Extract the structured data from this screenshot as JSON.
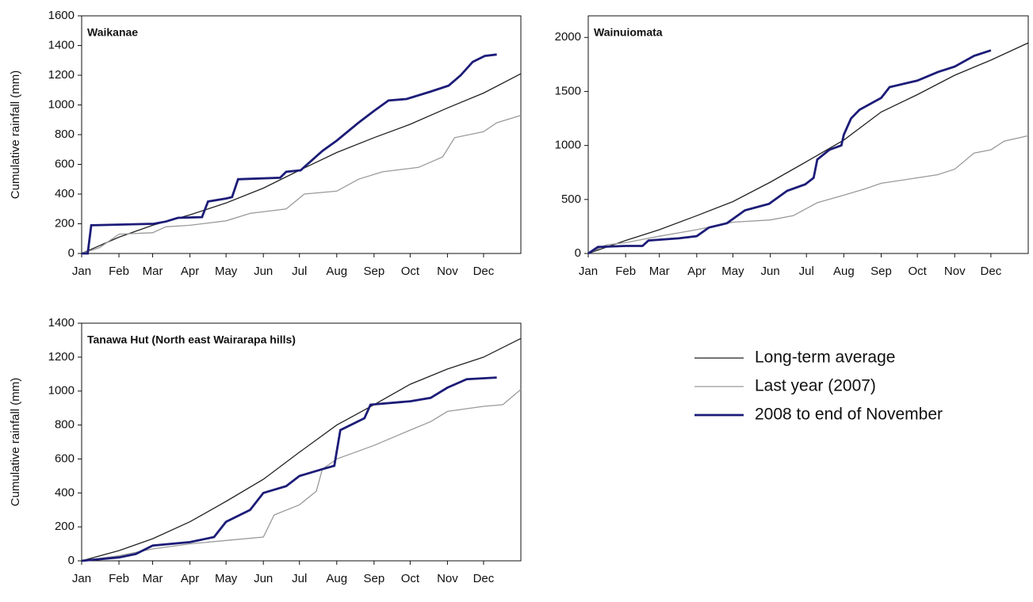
{
  "chart_data": [
    {
      "type": "line",
      "title": "Waikanae",
      "ylabel": "Cumulative rainfall (mm)",
      "xlim": [
        0,
        365
      ],
      "ylim": [
        0,
        1600
      ],
      "xticks": [
        {
          "value": 0,
          "label": "Jan"
        },
        {
          "value": 31,
          "label": "Feb"
        },
        {
          "value": 59,
          "label": "Mar"
        },
        {
          "value": 90,
          "label": "Apr"
        },
        {
          "value": 120,
          "label": "May"
        },
        {
          "value": 151,
          "label": "Jun"
        },
        {
          "value": 181,
          "label": "Jul"
        },
        {
          "value": 212,
          "label": "Aug"
        },
        {
          "value": 243,
          "label": "Sep"
        },
        {
          "value": 273,
          "label": "Oct"
        },
        {
          "value": 304,
          "label": "Nov"
        },
        {
          "value": 334,
          "label": "Dec"
        }
      ],
      "yticks": [
        0,
        200,
        400,
        600,
        800,
        1000,
        1200,
        1400,
        1600
      ],
      "series": [
        {
          "name": "Long-term average",
          "color": "#222222",
          "x": [
            0,
            31,
            59,
            90,
            120,
            151,
            181,
            212,
            243,
            273,
            304,
            334,
            365
          ],
          "values": [
            0,
            110,
            190,
            260,
            340,
            440,
            560,
            680,
            780,
            870,
            980,
            1080,
            1210
          ]
        },
        {
          "name": "Last year (2007)",
          "color": "#9a9a9a",
          "x": [
            0,
            15,
            31,
            59,
            70,
            90,
            120,
            140,
            170,
            185,
            212,
            230,
            250,
            280,
            300,
            310,
            334,
            345,
            365
          ],
          "values": [
            0,
            40,
            130,
            140,
            180,
            190,
            220,
            270,
            300,
            400,
            420,
            500,
            550,
            580,
            650,
            780,
            820,
            880,
            930
          ]
        },
        {
          "name": "2008 to end of November",
          "color": "#1c1c78",
          "x": [
            0,
            5,
            8,
            60,
            70,
            80,
            100,
            105,
            120,
            125,
            130,
            165,
            170,
            182,
            200,
            212,
            230,
            243,
            255,
            270,
            290,
            305,
            315,
            325,
            335,
            345
          ],
          "values": [
            0,
            0,
            190,
            200,
            215,
            240,
            245,
            350,
            370,
            380,
            500,
            510,
            550,
            560,
            690,
            760,
            880,
            960,
            1030,
            1040,
            1090,
            1130,
            1200,
            1290,
            1330,
            1340
          ]
        }
      ]
    },
    {
      "type": "line",
      "title": "Wainuiomata",
      "xlim": [
        0,
        365
      ],
      "ylim": [
        0,
        2200
      ],
      "xticks": [
        {
          "value": 0,
          "label": "Jan"
        },
        {
          "value": 31,
          "label": "Feb"
        },
        {
          "value": 59,
          "label": "Mar"
        },
        {
          "value": 90,
          "label": "Apr"
        },
        {
          "value": 120,
          "label": "May"
        },
        {
          "value": 151,
          "label": "Jun"
        },
        {
          "value": 181,
          "label": "Jul"
        },
        {
          "value": 212,
          "label": "Aug"
        },
        {
          "value": 243,
          "label": "Sep"
        },
        {
          "value": 273,
          "label": "Oct"
        },
        {
          "value": 304,
          "label": "Nov"
        },
        {
          "value": 334,
          "label": "Dec"
        }
      ],
      "yticks": [
        0,
        500,
        1000,
        1500,
        2000
      ],
      "series": [
        {
          "name": "Long-term average",
          "color": "#222222",
          "x": [
            0,
            31,
            59,
            90,
            120,
            151,
            181,
            212,
            243,
            273,
            304,
            334,
            365
          ],
          "values": [
            0,
            120,
            220,
            350,
            480,
            660,
            850,
            1050,
            1310,
            1470,
            1650,
            1790,
            1950
          ]
        },
        {
          "name": "Last year (2007)",
          "color": "#9a9a9a",
          "x": [
            0,
            15,
            31,
            59,
            90,
            120,
            151,
            170,
            190,
            212,
            230,
            243,
            273,
            290,
            304,
            320,
            334,
            345,
            365
          ],
          "values": [
            0,
            80,
            100,
            160,
            220,
            290,
            310,
            350,
            470,
            540,
            600,
            650,
            700,
            730,
            780,
            930,
            960,
            1040,
            1090
          ]
        },
        {
          "name": "2008 to end of November",
          "color": "#1c1c78",
          "x": [
            0,
            8,
            31,
            45,
            50,
            75,
            90,
            100,
            115,
            130,
            150,
            165,
            180,
            187,
            190,
            200,
            210,
            212,
            218,
            225,
            243,
            250,
            273,
            290,
            304,
            320,
            334
          ],
          "values": [
            0,
            60,
            70,
            70,
            120,
            140,
            160,
            240,
            280,
            400,
            460,
            580,
            640,
            700,
            870,
            960,
            1000,
            1100,
            1250,
            1330,
            1440,
            1540,
            1600,
            1680,
            1730,
            1830,
            1880
          ]
        }
      ]
    },
    {
      "type": "line",
      "title": "Tanawa Hut (North east Wairarapa hills)",
      "ylabel": "Cumulative rainfall (mm)",
      "xlim": [
        0,
        365
      ],
      "ylim": [
        0,
        1400
      ],
      "xticks": [
        {
          "value": 0,
          "label": "Jan"
        },
        {
          "value": 31,
          "label": "Feb"
        },
        {
          "value": 59,
          "label": "Mar"
        },
        {
          "value": 90,
          "label": "Apr"
        },
        {
          "value": 120,
          "label": "May"
        },
        {
          "value": 151,
          "label": "Jun"
        },
        {
          "value": 181,
          "label": "Jul"
        },
        {
          "value": 212,
          "label": "Aug"
        },
        {
          "value": 243,
          "label": "Sep"
        },
        {
          "value": 273,
          "label": "Oct"
        },
        {
          "value": 304,
          "label": "Nov"
        },
        {
          "value": 334,
          "label": "Dec"
        }
      ],
      "yticks": [
        0,
        200,
        400,
        600,
        800,
        1000,
        1200,
        1400
      ],
      "series": [
        {
          "name": "Long-term average",
          "color": "#222222",
          "x": [
            0,
            31,
            59,
            90,
            120,
            151,
            181,
            212,
            243,
            273,
            304,
            334,
            365
          ],
          "values": [
            0,
            60,
            130,
            230,
            350,
            480,
            640,
            800,
            920,
            1040,
            1130,
            1200,
            1310
          ]
        },
        {
          "name": "Last year (2007)",
          "color": "#9a9a9a",
          "x": [
            0,
            31,
            59,
            90,
            120,
            151,
            160,
            181,
            195,
            200,
            212,
            243,
            273,
            290,
            304,
            334,
            350,
            365
          ],
          "values": [
            0,
            30,
            70,
            100,
            120,
            140,
            270,
            330,
            410,
            540,
            600,
            680,
            770,
            820,
            880,
            910,
            920,
            1010
          ]
        },
        {
          "name": "2008 to end of November",
          "color": "#1c1c78",
          "x": [
            0,
            31,
            45,
            59,
            90,
            110,
            120,
            140,
            151,
            170,
            181,
            200,
            210,
            215,
            235,
            240,
            273,
            290,
            304,
            320,
            345
          ],
          "values": [
            0,
            20,
            40,
            90,
            110,
            140,
            230,
            300,
            400,
            440,
            500,
            540,
            560,
            770,
            840,
            920,
            940,
            960,
            1020,
            1070,
            1080
          ]
        }
      ]
    }
  ]
}
